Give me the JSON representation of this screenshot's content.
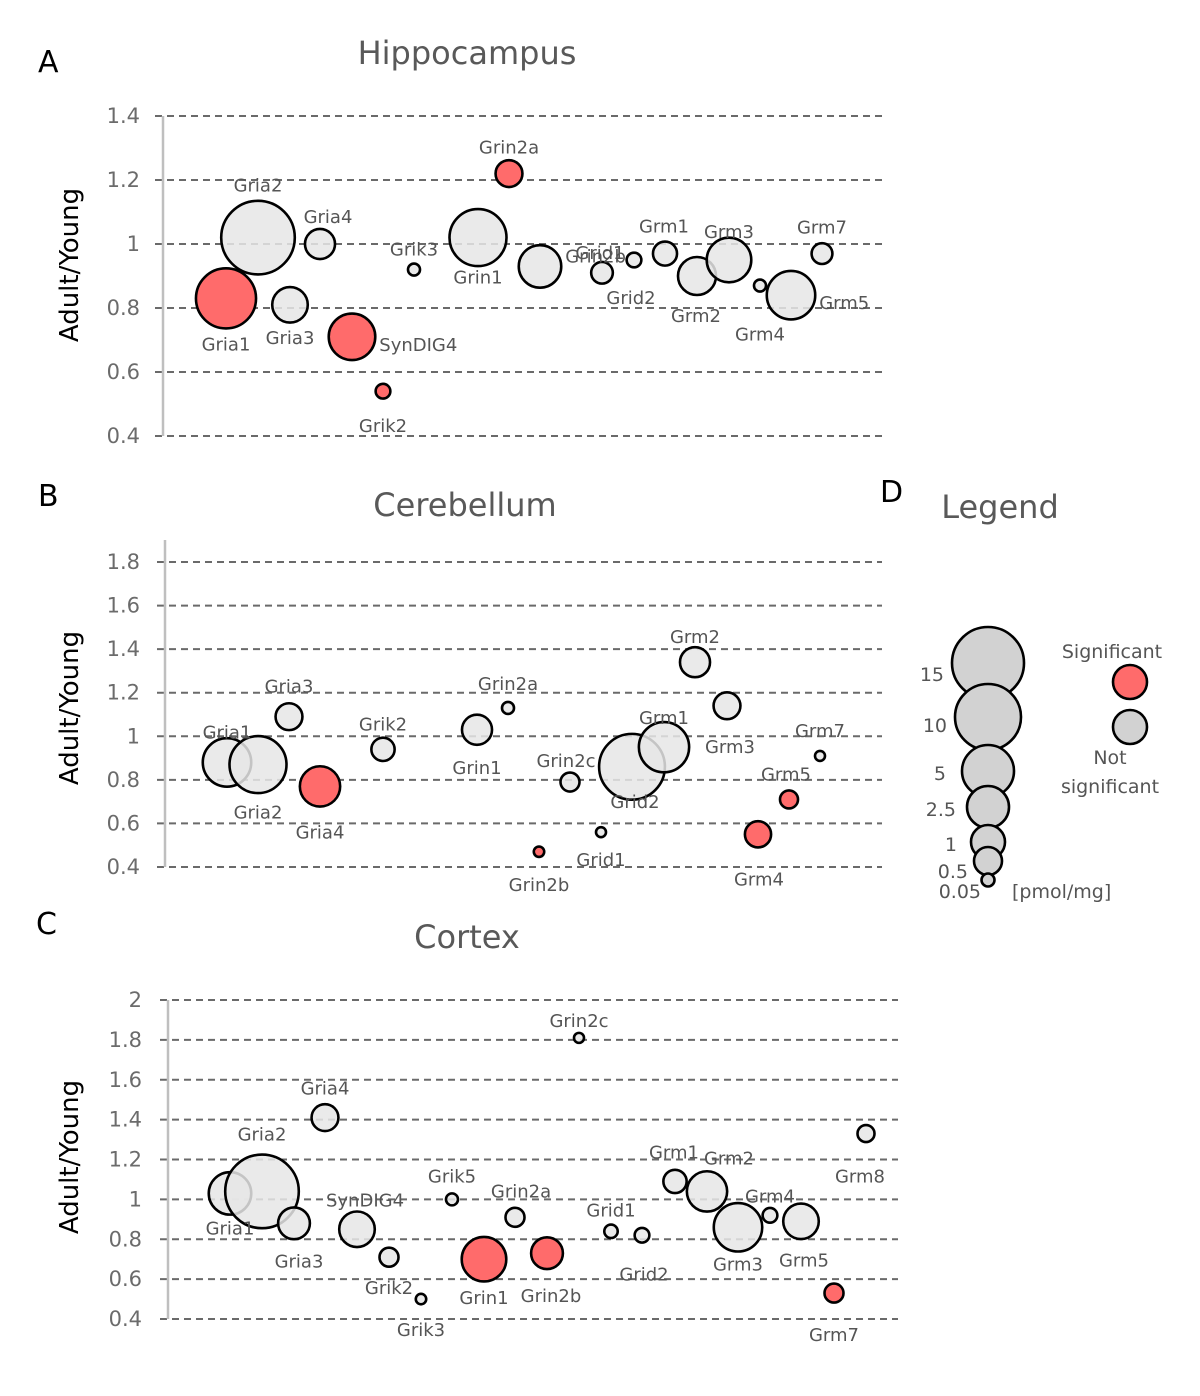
{
  "colors": {
    "significant": "#ff6b6b",
    "not_significant": "#e6e6e6",
    "legend_not_significant": "#d2d2d2"
  },
  "chart_data": [
    {
      "panel": "A",
      "type": "scatter",
      "subtype": "bubble",
      "title": "Hippocampus",
      "xlabel": "",
      "ylabel": "Adult/Young",
      "ylim": [
        0.4,
        1.4
      ],
      "yticks": [
        "0.4",
        "0.6",
        "0.8",
        "1",
        "1.2",
        "1.4"
      ],
      "grid": true,
      "points": [
        {
          "label": "Gria1",
          "y": 0.83,
          "size": 10,
          "significant": true
        },
        {
          "label": "Gria2",
          "y": 1.02,
          "size": 15,
          "significant": false
        },
        {
          "label": "Gria3",
          "y": 0.81,
          "size": 3.5,
          "significant": false
        },
        {
          "label": "Gria4",
          "y": 1.0,
          "size": 2.5,
          "significant": false
        },
        {
          "label": "SynDIG4",
          "y": 0.71,
          "size": 6,
          "significant": true
        },
        {
          "label": "Grik2",
          "y": 0.54,
          "size": 0.6,
          "significant": true
        },
        {
          "label": "Grik3",
          "y": 0.92,
          "size": 0.4,
          "significant": false
        },
        {
          "label": "Grin1",
          "y": 1.02,
          "size": 9,
          "significant": false
        },
        {
          "label": "Grin2a",
          "y": 1.22,
          "size": 2,
          "significant": true
        },
        {
          "label": "Grin2b",
          "y": 0.93,
          "size": 5,
          "significant": false
        },
        {
          "label": "Grid1",
          "y": 0.91,
          "size": 1.3,
          "significant": false
        },
        {
          "label": "Grid2",
          "y": 0.95,
          "size": 0.6,
          "significant": false
        },
        {
          "label": "Grm1",
          "y": 0.97,
          "size": 1.6,
          "significant": false
        },
        {
          "label": "Grm2",
          "y": 0.9,
          "size": 4,
          "significant": false
        },
        {
          "label": "Grm3",
          "y": 0.95,
          "size": 5.5,
          "significant": false
        },
        {
          "label": "Grm4",
          "y": 0.87,
          "size": 0.4,
          "significant": false
        },
        {
          "label": "Grm5",
          "y": 0.84,
          "size": 6.5,
          "significant": false
        },
        {
          "label": "Grm7",
          "y": 0.97,
          "size": 1.2,
          "significant": false
        }
      ]
    },
    {
      "panel": "B",
      "type": "scatter",
      "subtype": "bubble",
      "title": "Cerebellum",
      "xlabel": "",
      "ylabel": "Adult/Young",
      "ylim": [
        0.4,
        1.8
      ],
      "yticks": [
        "0.4",
        "0.6",
        "0.8",
        "1",
        "1.2",
        "1.4",
        "1.6",
        "1.8"
      ],
      "grid": true,
      "points": [
        {
          "label": "Gria1",
          "y": 0.88,
          "size": 6.5,
          "significant": false
        },
        {
          "label": "Gria2",
          "y": 0.87,
          "size": 9,
          "significant": false
        },
        {
          "label": "Gria3",
          "y": 1.09,
          "size": 2,
          "significant": false
        },
        {
          "label": "Gria4",
          "y": 0.77,
          "size": 4.5,
          "significant": true
        },
        {
          "label": "Grik2",
          "y": 0.94,
          "size": 1.5,
          "significant": false
        },
        {
          "label": "Grin1",
          "y": 1.03,
          "size": 2.5,
          "significant": false
        },
        {
          "label": "Grin2a",
          "y": 1.13,
          "size": 0.4,
          "significant": false
        },
        {
          "label": "Grin2b",
          "y": 0.47,
          "size": 0.3,
          "significant": true
        },
        {
          "label": "Grin2c",
          "y": 0.79,
          "size": 1.0,
          "significant": false
        },
        {
          "label": "Grid1",
          "y": 0.56,
          "size": 0.2,
          "significant": false
        },
        {
          "label": "Grid2",
          "y": 0.86,
          "size": 12,
          "significant": false
        },
        {
          "label": "Grm1",
          "y": 0.95,
          "size": 7,
          "significant": false
        },
        {
          "label": "Grm2",
          "y": 1.34,
          "size": 2.5,
          "significant": false
        },
        {
          "label": "Grm3",
          "y": 1.14,
          "size": 2.0,
          "significant": false
        },
        {
          "label": "Grm4",
          "y": 0.55,
          "size": 1.9,
          "significant": true
        },
        {
          "label": "Grm5",
          "y": 0.71,
          "size": 0.9,
          "significant": true
        },
        {
          "label": "Grm7",
          "y": 0.91,
          "size": 0.2,
          "significant": false
        }
      ]
    },
    {
      "panel": "C",
      "type": "scatter",
      "subtype": "bubble",
      "title": "Cortex",
      "xlabel": "",
      "ylabel": "Adult/Young",
      "ylim": [
        0.4,
        2.0
      ],
      "yticks": [
        "0.4",
        "0.6",
        "0.8",
        "1",
        "1.2",
        "1.4",
        "1.6",
        "1.8",
        "2"
      ],
      "grid": true,
      "points": [
        {
          "label": "Gria1",
          "y": 1.03,
          "size": 5,
          "significant": false
        },
        {
          "label": "Gria2",
          "y": 1.04,
          "size": 15,
          "significant": false
        },
        {
          "label": "Gria3",
          "y": 0.88,
          "size": 2.8,
          "significant": false
        },
        {
          "label": "Gria4",
          "y": 1.41,
          "size": 2.0,
          "significant": false
        },
        {
          "label": "SynDIG4",
          "y": 0.85,
          "size": 3.5,
          "significant": false
        },
        {
          "label": "Grik2",
          "y": 0.71,
          "size": 1.0,
          "significant": false
        },
        {
          "label": "Grik3",
          "y": 0.5,
          "size": 0.3,
          "significant": false
        },
        {
          "label": "Grik5",
          "y": 1.0,
          "size": 0.4,
          "significant": false
        },
        {
          "label": "Grin1",
          "y": 0.7,
          "size": 5.5,
          "significant": true
        },
        {
          "label": "Grin2a",
          "y": 0.91,
          "size": 1.0,
          "significant": false
        },
        {
          "label": "Grin2b",
          "y": 0.73,
          "size": 2.8,
          "significant": true
        },
        {
          "label": "Grin2c",
          "y": 1.81,
          "size": 0.1,
          "significant": false
        },
        {
          "label": "Grid1",
          "y": 0.84,
          "size": 0.5,
          "significant": false
        },
        {
          "label": "Grid2",
          "y": 0.82,
          "size": 0.6,
          "significant": false
        },
        {
          "label": "Grm1",
          "y": 1.09,
          "size": 1.5,
          "significant": false
        },
        {
          "label": "Grm2",
          "y": 1.04,
          "size": 4.5,
          "significant": false
        },
        {
          "label": "Grm3",
          "y": 0.86,
          "size": 6.5,
          "significant": false
        },
        {
          "label": "Grm4",
          "y": 0.92,
          "size": 0.6,
          "significant": false
        },
        {
          "label": "Grm5",
          "y": 0.89,
          "size": 3.5,
          "significant": false
        },
        {
          "label": "Grm7",
          "y": 0.53,
          "size": 1.0,
          "significant": true
        },
        {
          "label": "Grm8",
          "y": 1.33,
          "size": 0.8,
          "significant": false
        }
      ]
    }
  ],
  "panels": {
    "A": {
      "letter": "A",
      "title": "Hippocampus",
      "ylabel": "Adult/Young"
    },
    "B": {
      "letter": "B",
      "title": "Cerebellum",
      "ylabel": "Adult/Young"
    },
    "C": {
      "letter": "C",
      "title": "Cortex",
      "ylabel": "Adult/Young"
    },
    "D": {
      "letter": "D",
      "title": "Legend"
    }
  },
  "legend": {
    "title": "Legend",
    "size_labels": [
      "15",
      "10",
      "5",
      "2.5",
      "1",
      "0.5",
      "0.05"
    ],
    "unit": "[pmol/mg]",
    "significant_label": "Significant",
    "not_significant_label_line1": "Not",
    "not_significant_label_line2": "significant"
  }
}
